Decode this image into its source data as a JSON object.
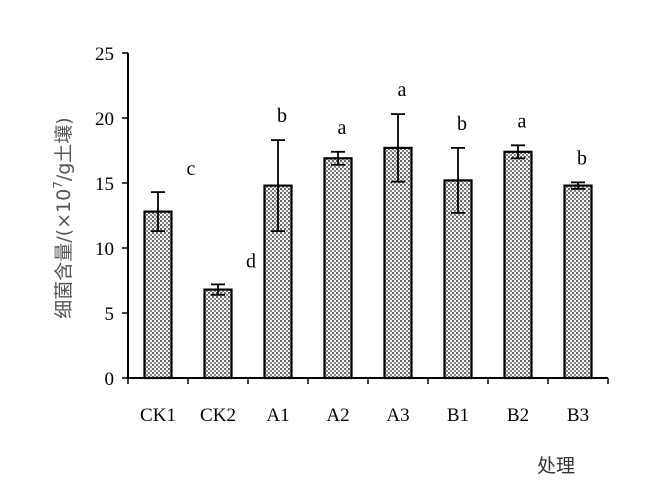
{
  "chart_data": {
    "type": "bar",
    "categories": [
      "CK1",
      "CK2",
      "A1",
      "A2",
      "A3",
      "B1",
      "B2",
      "B3"
    ],
    "values": [
      12.8,
      6.8,
      14.8,
      16.9,
      17.7,
      15.2,
      17.4,
      14.8
    ],
    "errors": [
      1.5,
      0.4,
      3.5,
      0.5,
      2.6,
      2.5,
      0.5,
      0.25
    ],
    "significance": [
      "c",
      "d",
      "b",
      "a",
      "a",
      "b",
      "a",
      "b"
    ],
    "ylim": [
      0,
      25
    ],
    "yticks": [
      0,
      5,
      10,
      15,
      20,
      25
    ],
    "ylabel_main": "细菌含量/(×10",
    "ylabel_exp": "7",
    "ylabel_tail": "/g土壤)",
    "xlabel": "处理",
    "grid": false,
    "legend": "none"
  }
}
